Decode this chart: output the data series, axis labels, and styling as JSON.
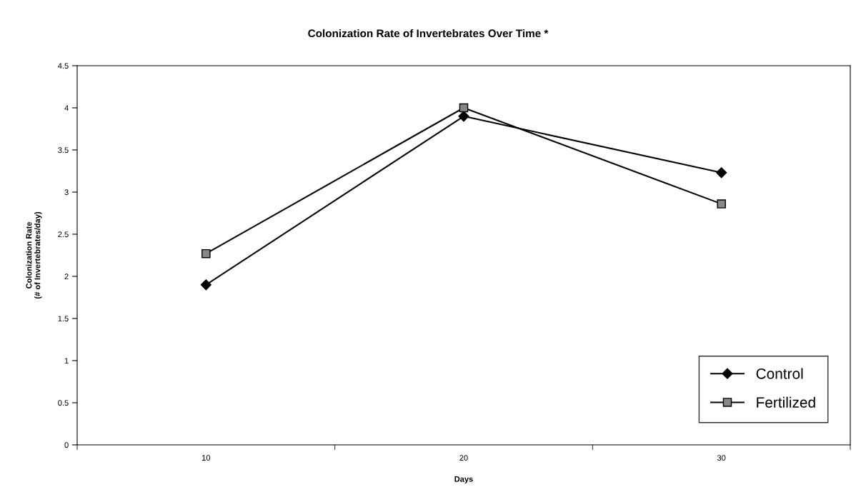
{
  "chart_data": {
    "type": "line",
    "title": "Colonization Rate of Invertebrates Over Time *",
    "xlabel": "Days",
    "ylabel": "Colonization Rate\n(# of Invertebrates/day)",
    "categories": [
      "10",
      "20",
      "30"
    ],
    "series": [
      {
        "name": "Control",
        "color": "#000000",
        "marker": "diamond",
        "values": [
          1.9,
          3.9,
          3.23
        ]
      },
      {
        "name": "Fertilized",
        "color": "#000000",
        "marker": "square",
        "values": [
          2.27,
          4.0,
          2.86
        ]
      }
    ],
    "ylim": [
      0,
      4.5
    ],
    "yticks": [
      0,
      0.5,
      1,
      1.5,
      2,
      2.5,
      3,
      3.5,
      4,
      4.5
    ],
    "grid": false,
    "legend": "bottom right"
  }
}
